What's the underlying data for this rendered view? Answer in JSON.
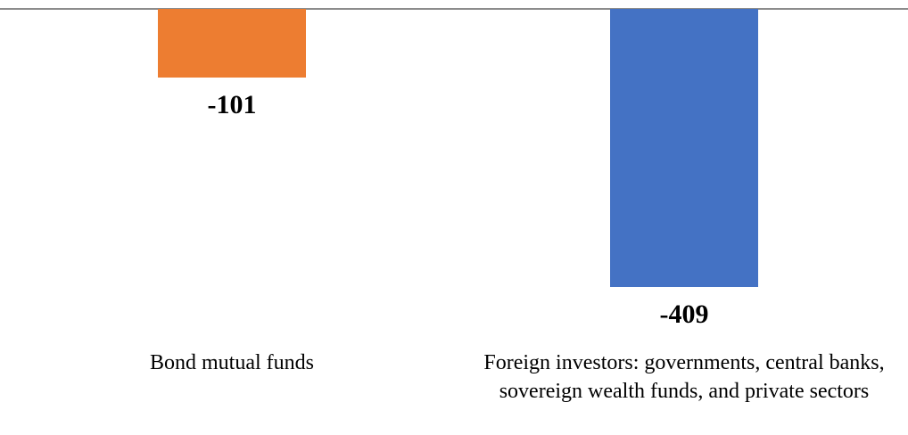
{
  "chart_data": {
    "type": "bar",
    "categories": [
      "Bond mutual funds",
      "Foreign investors: governments, central banks, sovereign wealth funds, and private sectors"
    ],
    "values": [
      -101,
      -409
    ],
    "colors": [
      "#ED7D31",
      "#4472C4"
    ]
  }
}
